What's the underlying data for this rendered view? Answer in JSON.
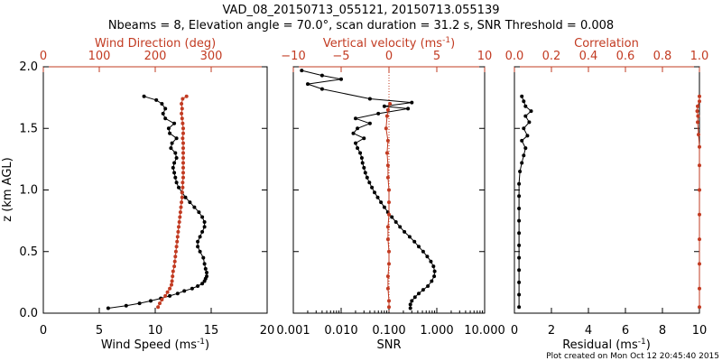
{
  "title_line1": "VAD_08_20150713_055121, 20150713.055139",
  "title_line2": "Nbeams = 8, Elevation angle = 70.0°, scan duration = 31.2 s, SNR Threshold = 0.008",
  "footer": "Plot created on Mon Oct 12 20:45:40 2015",
  "colors": {
    "black_series": "#000000",
    "red_series": "#c23b22"
  },
  "chart_data": [
    {
      "type": "line",
      "panel": "wind",
      "ylabel": "z (km AGL)",
      "ylim": [
        0,
        2.0
      ],
      "yticks": [
        "0.0",
        "0.5",
        "1.0",
        "1.5",
        "2.0"
      ],
      "bottom_axis": {
        "label": "Wind Speed (ms",
        "label_sup": "-1",
        "label_end": ")",
        "range": [
          0,
          20
        ],
        "ticks": [
          "0",
          "5",
          "10",
          "15",
          "20"
        ]
      },
      "top_axis": {
        "label": "Wind Direction (deg)",
        "range": [
          0,
          400
        ],
        "ticks": [
          "0",
          "100",
          "200",
          "300"
        ],
        "tick_values": [
          0,
          100,
          200,
          300
        ]
      },
      "series": [
        {
          "axis": "bottom",
          "color": "black",
          "points": [
            [
              5.8,
              0.04
            ],
            [
              7.4,
              0.06
            ],
            [
              8.6,
              0.08
            ],
            [
              9.6,
              0.1
            ],
            [
              10.5,
              0.12
            ],
            [
              11.3,
              0.14
            ],
            [
              12.0,
              0.16
            ],
            [
              12.6,
              0.18
            ],
            [
              13.3,
              0.2
            ],
            [
              13.8,
              0.22
            ],
            [
              14.2,
              0.24
            ],
            [
              14.4,
              0.26
            ],
            [
              14.5,
              0.28
            ],
            [
              14.6,
              0.3
            ],
            [
              14.6,
              0.33
            ],
            [
              14.5,
              0.36
            ],
            [
              14.4,
              0.4
            ],
            [
              14.3,
              0.45
            ],
            [
              14.0,
              0.5
            ],
            [
              13.8,
              0.54
            ],
            [
              13.8,
              0.58
            ],
            [
              14.0,
              0.62
            ],
            [
              14.2,
              0.66
            ],
            [
              14.4,
              0.7
            ],
            [
              14.4,
              0.74
            ],
            [
              14.2,
              0.78
            ],
            [
              13.9,
              0.82
            ],
            [
              13.5,
              0.86
            ],
            [
              13.1,
              0.9
            ],
            [
              12.7,
              0.94
            ],
            [
              12.4,
              0.98
            ],
            [
              12.1,
              1.02
            ],
            [
              11.9,
              1.06
            ],
            [
              11.8,
              1.1
            ],
            [
              11.7,
              1.14
            ],
            [
              11.6,
              1.18
            ],
            [
              11.7,
              1.22
            ],
            [
              11.9,
              1.26
            ],
            [
              11.8,
              1.3
            ],
            [
              11.4,
              1.34
            ],
            [
              11.5,
              1.38
            ],
            [
              11.9,
              1.42
            ],
            [
              11.3,
              1.46
            ],
            [
              11.2,
              1.5
            ],
            [
              11.7,
              1.54
            ],
            [
              10.9,
              1.58
            ],
            [
              10.7,
              1.62
            ],
            [
              10.9,
              1.66
            ],
            [
              10.6,
              1.7
            ],
            [
              10.1,
              1.73
            ],
            [
              9.0,
              1.76
            ]
          ]
        },
        {
          "axis": "top",
          "color": "red",
          "points": [
            [
              205,
              0.05
            ],
            [
              208,
              0.08
            ],
            [
              212,
              0.11
            ],
            [
              218,
              0.14
            ],
            [
              222,
              0.17
            ],
            [
              226,
              0.2
            ],
            [
              229,
              0.23
            ],
            [
              230,
              0.26
            ],
            [
              231,
              0.3
            ],
            [
              232,
              0.34
            ],
            [
              234,
              0.38
            ],
            [
              235,
              0.42
            ],
            [
              236,
              0.46
            ],
            [
              237,
              0.5
            ],
            [
              238,
              0.54
            ],
            [
              239,
              0.58
            ],
            [
              240,
              0.62
            ],
            [
              241,
              0.66
            ],
            [
              242,
              0.7
            ],
            [
              243,
              0.74
            ],
            [
              244,
              0.78
            ],
            [
              245,
              0.82
            ],
            [
              246,
              0.86
            ],
            [
              247,
              0.9
            ],
            [
              248,
              0.94
            ],
            [
              248,
              0.98
            ],
            [
              249,
              1.02
            ],
            [
              249,
              1.06
            ],
            [
              250,
              1.1
            ],
            [
              250,
              1.14
            ],
            [
              250,
              1.18
            ],
            [
              250,
              1.22
            ],
            [
              250,
              1.26
            ],
            [
              250,
              1.3
            ],
            [
              250,
              1.34
            ],
            [
              250,
              1.38
            ],
            [
              249,
              1.42
            ],
            [
              250,
              1.46
            ],
            [
              250,
              1.5
            ],
            [
              249,
              1.54
            ],
            [
              248,
              1.58
            ],
            [
              247,
              1.62
            ],
            [
              248,
              1.66
            ],
            [
              247,
              1.7
            ],
            [
              249,
              1.74
            ],
            [
              256,
              1.76
            ]
          ]
        }
      ]
    },
    {
      "type": "line",
      "panel": "snr",
      "bottom_axis": {
        "label": "SNR",
        "scale": "log",
        "range": [
          0.001,
          10
        ],
        "ticks": [
          "0.001",
          "0.010",
          "0.100",
          "1.000",
          "10.000"
        ],
        "tick_values": [
          0.001,
          0.01,
          0.1,
          1,
          10
        ]
      },
      "top_axis": {
        "label": "Vertical velocity (ms",
        "label_sup": "-1",
        "label_end": ")",
        "range": [
          -10,
          10
        ],
        "ticks": [
          "−10",
          "−5",
          "0",
          "5",
          "10"
        ],
        "tick_values": [
          -10,
          -5,
          0,
          5,
          10
        ]
      },
      "series": [
        {
          "axis": "bottom",
          "color": "black",
          "points": [
            [
              0.28,
              0.04
            ],
            [
              0.28,
              0.07
            ],
            [
              0.3,
              0.1
            ],
            [
              0.35,
              0.13
            ],
            [
              0.42,
              0.16
            ],
            [
              0.52,
              0.19
            ],
            [
              0.65,
              0.22
            ],
            [
              0.78,
              0.26
            ],
            [
              0.88,
              0.3
            ],
            [
              0.9,
              0.34
            ],
            [
              0.85,
              0.38
            ],
            [
              0.75,
              0.42
            ],
            [
              0.63,
              0.46
            ],
            [
              0.52,
              0.5
            ],
            [
              0.42,
              0.54
            ],
            [
              0.34,
              0.58
            ],
            [
              0.27,
              0.62
            ],
            [
              0.21,
              0.66
            ],
            [
              0.17,
              0.7
            ],
            [
              0.14,
              0.74
            ],
            [
              0.115,
              0.78
            ],
            [
              0.095,
              0.82
            ],
            [
              0.08,
              0.86
            ],
            [
              0.068,
              0.9
            ],
            [
              0.058,
              0.94
            ],
            [
              0.05,
              0.98
            ],
            [
              0.044,
              1.02
            ],
            [
              0.039,
              1.06
            ],
            [
              0.035,
              1.1
            ],
            [
              0.032,
              1.14
            ],
            [
              0.03,
              1.18
            ],
            [
              0.028,
              1.22
            ],
            [
              0.027,
              1.26
            ],
            [
              0.025,
              1.3
            ],
            [
              0.022,
              1.34
            ],
            [
              0.02,
              1.38
            ],
            [
              0.03,
              1.42
            ],
            [
              0.018,
              1.46
            ],
            [
              0.022,
              1.5
            ],
            [
              0.04,
              1.54
            ],
            [
              0.02,
              1.58
            ],
            [
              0.06,
              1.62
            ],
            [
              0.25,
              1.66
            ],
            [
              0.08,
              1.68
            ],
            [
              0.3,
              1.71
            ],
            [
              0.04,
              1.74
            ],
            [
              0.004,
              1.82
            ],
            [
              0.002,
              1.86
            ],
            [
              0.01,
              1.9
            ],
            [
              0.004,
              1.93
            ],
            [
              0.0015,
              1.97
            ]
          ]
        },
        {
          "axis": "top",
          "color": "red",
          "points": [
            [
              0.0,
              0.05
            ],
            [
              0.0,
              0.1
            ],
            [
              -0.1,
              0.2
            ],
            [
              -0.1,
              0.3
            ],
            [
              0.0,
              0.4
            ],
            [
              0.0,
              0.5
            ],
            [
              -0.1,
              0.6
            ],
            [
              -0.1,
              0.7
            ],
            [
              0.0,
              0.8
            ],
            [
              0.0,
              0.9
            ],
            [
              0.0,
              1.0
            ],
            [
              -0.1,
              1.1
            ],
            [
              -0.1,
              1.2
            ],
            [
              -0.2,
              1.3
            ],
            [
              -0.1,
              1.4
            ],
            [
              -0.3,
              1.5
            ],
            [
              -0.2,
              1.6
            ],
            [
              -0.1,
              1.65
            ],
            [
              0.1,
              1.7
            ]
          ]
        }
      ]
    },
    {
      "type": "line",
      "panel": "residual",
      "bottom_axis": {
        "label": "Residual (ms",
        "label_sup": "-1",
        "label_end": ")",
        "range": [
          0,
          10
        ],
        "ticks": [
          "0",
          "2",
          "4",
          "6",
          "8",
          "10"
        ],
        "tick_values": [
          0,
          2,
          4,
          6,
          8,
          10
        ]
      },
      "top_axis": {
        "label": "Correlation",
        "range": [
          0,
          1
        ],
        "ticks": [
          "0.0",
          "0.2",
          "0.4",
          "0.6",
          "0.8",
          "1.0"
        ],
        "tick_values": [
          0,
          0.2,
          0.4,
          0.6,
          0.8,
          1.0
        ]
      },
      "series": [
        {
          "axis": "bottom",
          "color": "black",
          "points": [
            [
              0.25,
              0.05
            ],
            [
              0.25,
              0.15
            ],
            [
              0.25,
              0.25
            ],
            [
              0.25,
              0.35
            ],
            [
              0.25,
              0.45
            ],
            [
              0.25,
              0.55
            ],
            [
              0.25,
              0.65
            ],
            [
              0.25,
              0.75
            ],
            [
              0.25,
              0.85
            ],
            [
              0.25,
              0.95
            ],
            [
              0.25,
              1.05
            ],
            [
              0.3,
              1.15
            ],
            [
              0.4,
              1.22
            ],
            [
              0.5,
              1.28
            ],
            [
              0.6,
              1.34
            ],
            [
              0.4,
              1.4
            ],
            [
              0.7,
              1.44
            ],
            [
              0.5,
              1.5
            ],
            [
              0.8,
              1.55
            ],
            [
              0.6,
              1.6
            ],
            [
              0.9,
              1.64
            ],
            [
              0.6,
              1.68
            ],
            [
              0.5,
              1.72
            ],
            [
              0.4,
              1.76
            ]
          ]
        },
        {
          "axis": "top",
          "color": "red",
          "points": [
            [
              1.0,
              0.05
            ],
            [
              1.0,
              0.2
            ],
            [
              1.0,
              0.4
            ],
            [
              1.0,
              0.6
            ],
            [
              1.0,
              0.8
            ],
            [
              1.0,
              1.0
            ],
            [
              1.0,
              1.2
            ],
            [
              1.0,
              1.35
            ],
            [
              0.995,
              1.45
            ],
            [
              0.99,
              1.55
            ],
            [
              0.992,
              1.6
            ],
            [
              0.988,
              1.64
            ],
            [
              0.99,
              1.68
            ],
            [
              1.0,
              1.72
            ],
            [
              1.0,
              1.76
            ]
          ]
        }
      ]
    }
  ]
}
